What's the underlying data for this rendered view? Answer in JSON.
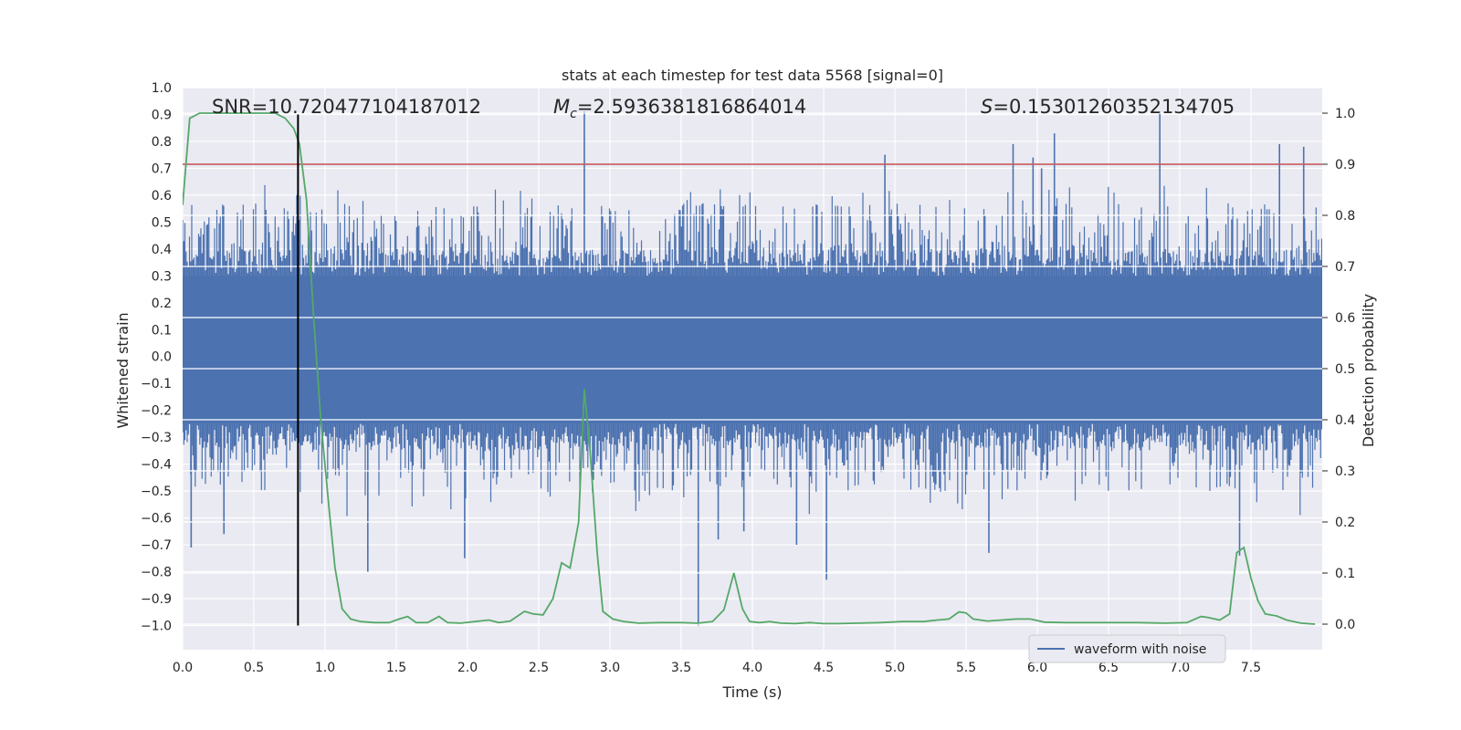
{
  "chart_data": {
    "type": "line",
    "title": "stats at each timestep for test data 5568 [signal=0]",
    "xlabel": "Time (s)",
    "ylabel_left": "Whitened strain",
    "ylabel_right": "Detection probability",
    "xlim": [
      0.0,
      8.0
    ],
    "ylim_left": [
      -1.09,
      1.0
    ],
    "ylim_right": [
      -0.05,
      1.05
    ],
    "x_ticks": [
      "0.0",
      "0.5",
      "1.0",
      "1.5",
      "2.0",
      "2.5",
      "3.0",
      "3.5",
      "4.0",
      "4.5",
      "5.0",
      "5.5",
      "6.0",
      "6.5",
      "7.0",
      "7.5"
    ],
    "y_ticks_left": [
      "1.0",
      "0.9",
      "0.8",
      "0.7",
      "0.6",
      "0.5",
      "0.4",
      "0.3",
      "0.2",
      "0.1",
      "0.0",
      "−0.1",
      "−0.2",
      "−0.3",
      "−0.4",
      "−0.5",
      "−0.6",
      "−0.7",
      "−0.8",
      "−0.9",
      "−1.0"
    ],
    "y_ticks_right": [
      "1.0",
      "0.9",
      "0.8",
      "0.7",
      "0.6",
      "0.5",
      "0.4",
      "0.3",
      "0.2",
      "0.1",
      "0.0"
    ],
    "annotations": {
      "snr": "SNR=10.720477104187012",
      "mc_symbol": "M",
      "mc_subscript": "c",
      "mc_value": "=2.5936381816864014",
      "s_symbol": "S",
      "s_value": "=0.15301260352134705"
    },
    "threshold": {
      "axis": "right",
      "value": 0.9,
      "color": "#c44e52"
    },
    "marker_line": {
      "x": 0.81,
      "y_from": -1.0,
      "y_to": 0.9,
      "color": "#000000"
    },
    "legend": {
      "location": "lower-right",
      "entries": [
        "waveform with noise"
      ]
    },
    "series": [
      {
        "name": "waveform with noise",
        "axis": "left",
        "color": "#4c72b0",
        "kind": "dense-noise",
        "sample_rate_hz": 2048,
        "duration_s": 8.0,
        "typical_envelope": [
          -0.45,
          0.52
        ],
        "peaks": [
          {
            "t": 2.82,
            "v": 0.91
          },
          {
            "t": 6.86,
            "v": 0.91
          },
          {
            "t": 6.12,
            "v": 0.83
          },
          {
            "t": 5.83,
            "v": 0.79
          },
          {
            "t": 7.7,
            "v": 0.79
          },
          {
            "t": 7.87,
            "v": 0.78
          },
          {
            "t": 5.97,
            "v": 0.74
          },
          {
            "t": 4.93,
            "v": 0.75
          },
          {
            "t": 6.03,
            "v": 0.7
          },
          {
            "t": 3.62,
            "v": -1.0
          },
          {
            "t": 4.52,
            "v": -0.83
          },
          {
            "t": 1.3,
            "v": -0.8
          },
          {
            "t": 1.98,
            "v": -0.75
          },
          {
            "t": 3.76,
            "v": -0.68
          },
          {
            "t": 4.31,
            "v": -0.7
          },
          {
            "t": 5.66,
            "v": -0.73
          },
          {
            "t": 7.42,
            "v": -0.74
          },
          {
            "t": 0.06,
            "v": -0.71
          },
          {
            "t": 0.29,
            "v": -0.66
          },
          {
            "t": 3.94,
            "v": -0.65
          }
        ]
      },
      {
        "name": "detection probability",
        "axis": "right",
        "color": "#55a868",
        "x": [
          0.0,
          0.05,
          0.12,
          0.2,
          0.3,
          0.4,
          0.5,
          0.6,
          0.65,
          0.72,
          0.78,
          0.82,
          0.87,
          0.92,
          0.97,
          1.03,
          1.07,
          1.12,
          1.18,
          1.25,
          1.35,
          1.45,
          1.52,
          1.58,
          1.64,
          1.72,
          1.8,
          1.86,
          1.95,
          2.05,
          2.15,
          2.22,
          2.3,
          2.4,
          2.46,
          2.53,
          2.6,
          2.66,
          2.72,
          2.78,
          2.82,
          2.86,
          2.91,
          2.95,
          3.02,
          3.1,
          3.2,
          3.35,
          3.5,
          3.62,
          3.72,
          3.8,
          3.87,
          3.93,
          3.98,
          4.05,
          4.12,
          4.2,
          4.3,
          4.4,
          4.5,
          4.6,
          4.75,
          4.9,
          5.05,
          5.2,
          5.3,
          5.38,
          5.45,
          5.5,
          5.55,
          5.65,
          5.75,
          5.85,
          5.95,
          6.05,
          6.2,
          6.35,
          6.5,
          6.7,
          6.9,
          7.05,
          7.15,
          7.2,
          7.28,
          7.35,
          7.4,
          7.45,
          7.5,
          7.55,
          7.6,
          7.68,
          7.75,
          7.85,
          7.95
        ],
        "values": [
          0.82,
          0.99,
          1.0,
          1.0,
          1.0,
          1.0,
          1.0,
          1.0,
          1.0,
          0.99,
          0.97,
          0.94,
          0.83,
          0.6,
          0.4,
          0.22,
          0.11,
          0.03,
          0.01,
          0.005,
          0.003,
          0.003,
          0.01,
          0.015,
          0.003,
          0.003,
          0.015,
          0.003,
          0.002,
          0.005,
          0.008,
          0.003,
          0.006,
          0.025,
          0.02,
          0.018,
          0.05,
          0.12,
          0.11,
          0.2,
          0.46,
          0.34,
          0.14,
          0.025,
          0.01,
          0.005,
          0.002,
          0.003,
          0.003,
          0.002,
          0.005,
          0.028,
          0.1,
          0.03,
          0.005,
          0.003,
          0.005,
          0.002,
          0.001,
          0.003,
          0.001,
          0.001,
          0.002,
          0.003,
          0.005,
          0.005,
          0.008,
          0.01,
          0.024,
          0.022,
          0.01,
          0.006,
          0.008,
          0.01,
          0.01,
          0.004,
          0.003,
          0.003,
          0.003,
          0.003,
          0.002,
          0.003,
          0.015,
          0.013,
          0.008,
          0.02,
          0.14,
          0.15,
          0.09,
          0.045,
          0.02,
          0.016,
          0.008,
          0.002,
          0.0
        ]
      }
    ]
  }
}
